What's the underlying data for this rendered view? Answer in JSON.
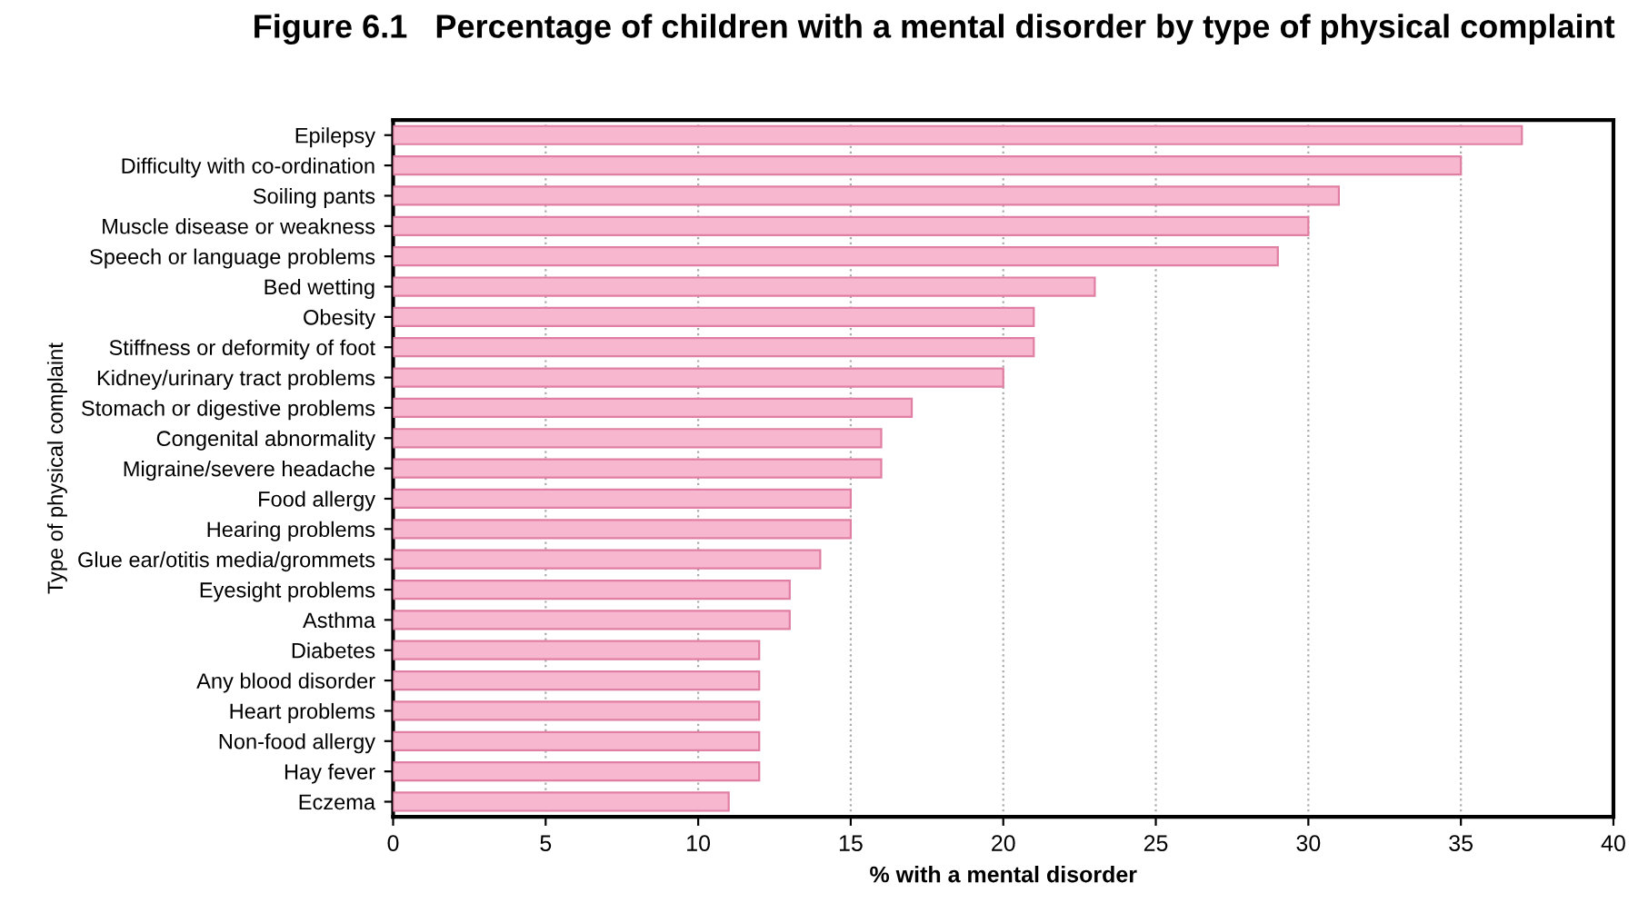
{
  "chart_data": {
    "type": "bar",
    "orientation": "horizontal",
    "title": "Figure 6.1   Percentage of children with a mental disorder by type of physical complaint",
    "xlabel": "% with a mental disorder",
    "ylabel": "Type of physical complaint",
    "categories": [
      "Epilepsy",
      "Difficulty with co-ordination",
      "Soiling pants",
      "Muscle disease or weakness",
      "Speech or language problems",
      "Bed wetting",
      "Obesity",
      "Stiffness or deformity of foot",
      "Kidney/urinary tract problems",
      "Stomach or digestive problems",
      "Congenital abnormality",
      "Migraine/severe headache",
      "Food allergy",
      "Hearing problems",
      "Glue ear/otitis media/grommets",
      "Eyesight problems",
      "Asthma",
      "Diabetes",
      "Any blood disorder",
      "Heart problems",
      "Non-food allergy",
      "Hay fever",
      "Eczema"
    ],
    "values": [
      37,
      35,
      31,
      30,
      29,
      23,
      21,
      21,
      20,
      17,
      16,
      16,
      15,
      15,
      14,
      13,
      13,
      12,
      12,
      12,
      12,
      12,
      11
    ],
    "color": "#f7b8cf",
    "xlim": [
      0,
      40
    ],
    "xticks": [
      0,
      5,
      10,
      15,
      20,
      25,
      30,
      35,
      40
    ],
    "grid": "x"
  }
}
